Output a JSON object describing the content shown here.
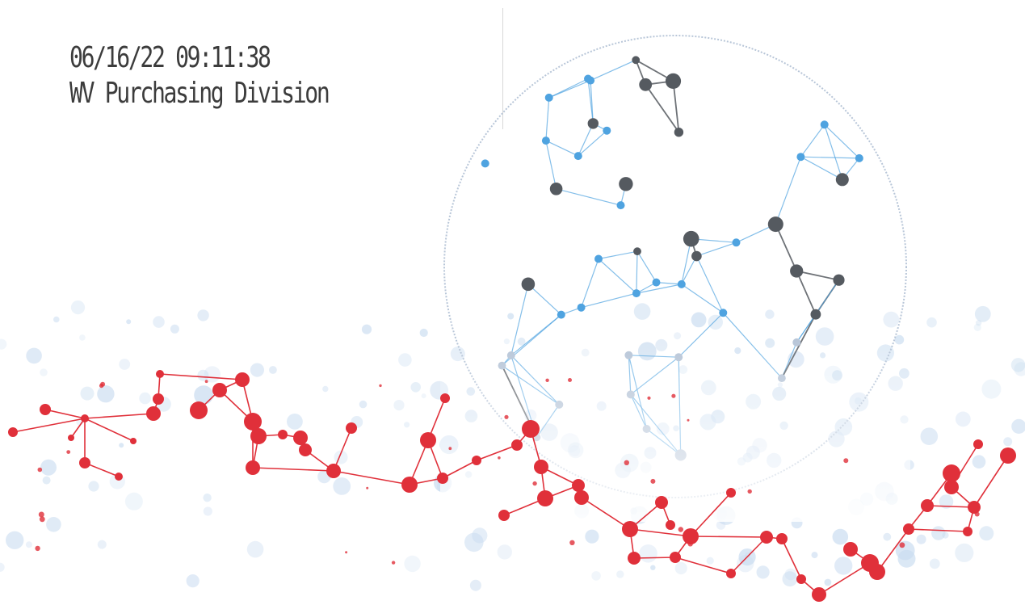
{
  "stamp": {
    "timestamp": "06/16/22 09:11:38",
    "office": "WV Purchasing Division"
  },
  "colors": {
    "stamp_text": "#3c3c3c",
    "globe_dark": "#555a60",
    "globe_blue": "#4fa3e0",
    "globe_light": "#b8c6d8",
    "network_red": "#e0303a",
    "bokeh_blue": "#c9dcf0"
  }
}
